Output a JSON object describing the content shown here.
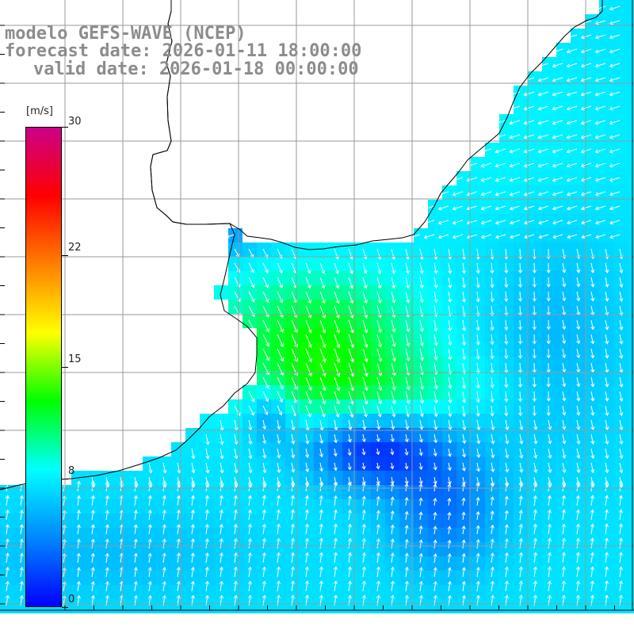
{
  "title": {
    "line1": "modelo GEFS-WAVE (NCEP)",
    "line2": "forecast date: 2026-01-11 18:00:00",
    "line3": "valid date: 2026-01-18 00:00:00"
  },
  "colorbar": {
    "unit": "[m/s]",
    "min": 0,
    "max": 30,
    "tick_values": [
      0,
      8,
      15,
      22,
      30
    ],
    "tick_labels": [
      "0",
      "8",
      "15",
      "22",
      "30"
    ],
    "stops": [
      "#0000ff",
      "#0087ff",
      "#00ffff",
      "#00ff00",
      "#ffff00",
      "#ff7f00",
      "#ff0000",
      "#cc0088"
    ]
  },
  "map": {
    "field": "wind speed with direction arrows",
    "region": "Rio de la Plata estuary and adjacent South Atlantic",
    "colors": {
      "land": "#ffffff",
      "coast": "#000000",
      "grid": "#9a9a9a",
      "arrow": "#ffffff",
      "label": "#8fb4b8"
    }
  }
}
